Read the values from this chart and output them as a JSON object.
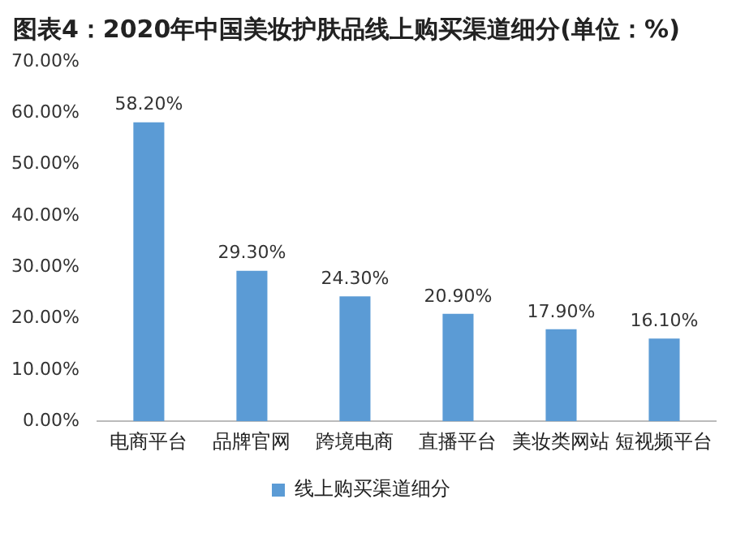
{
  "chart_data": {
    "type": "bar",
    "title": "图表4：2020年中国美妆护肤品线上购买渠道细分(单位：%)",
    "categories": [
      "电商平台",
      "品牌官网",
      "跨境电商",
      "直播平台",
      "美妆类网站",
      "短视频平台"
    ],
    "series": [
      {
        "name": "线上购买渠道细分",
        "color": "#5b9bd5",
        "values": [
          58.2,
          29.3,
          24.3,
          20.9,
          17.9,
          16.1
        ]
      }
    ],
    "value_labels": [
      "58.20%",
      "29.30%",
      "24.30%",
      "20.90%",
      "17.90%",
      "16.10%"
    ],
    "ylim": [
      0,
      70
    ],
    "yticks": [
      {
        "value": 0,
        "label": "0.00%"
      },
      {
        "value": 10,
        "label": "10.00%"
      },
      {
        "value": 20,
        "label": "20.00%"
      },
      {
        "value": 30,
        "label": "30.00%"
      },
      {
        "value": 40,
        "label": "40.00%"
      },
      {
        "value": 50,
        "label": "50.00%"
      },
      {
        "value": 60,
        "label": "60.00%"
      },
      {
        "value": 70,
        "label": "70.00%"
      }
    ],
    "grid": false,
    "legend": "bottom"
  }
}
